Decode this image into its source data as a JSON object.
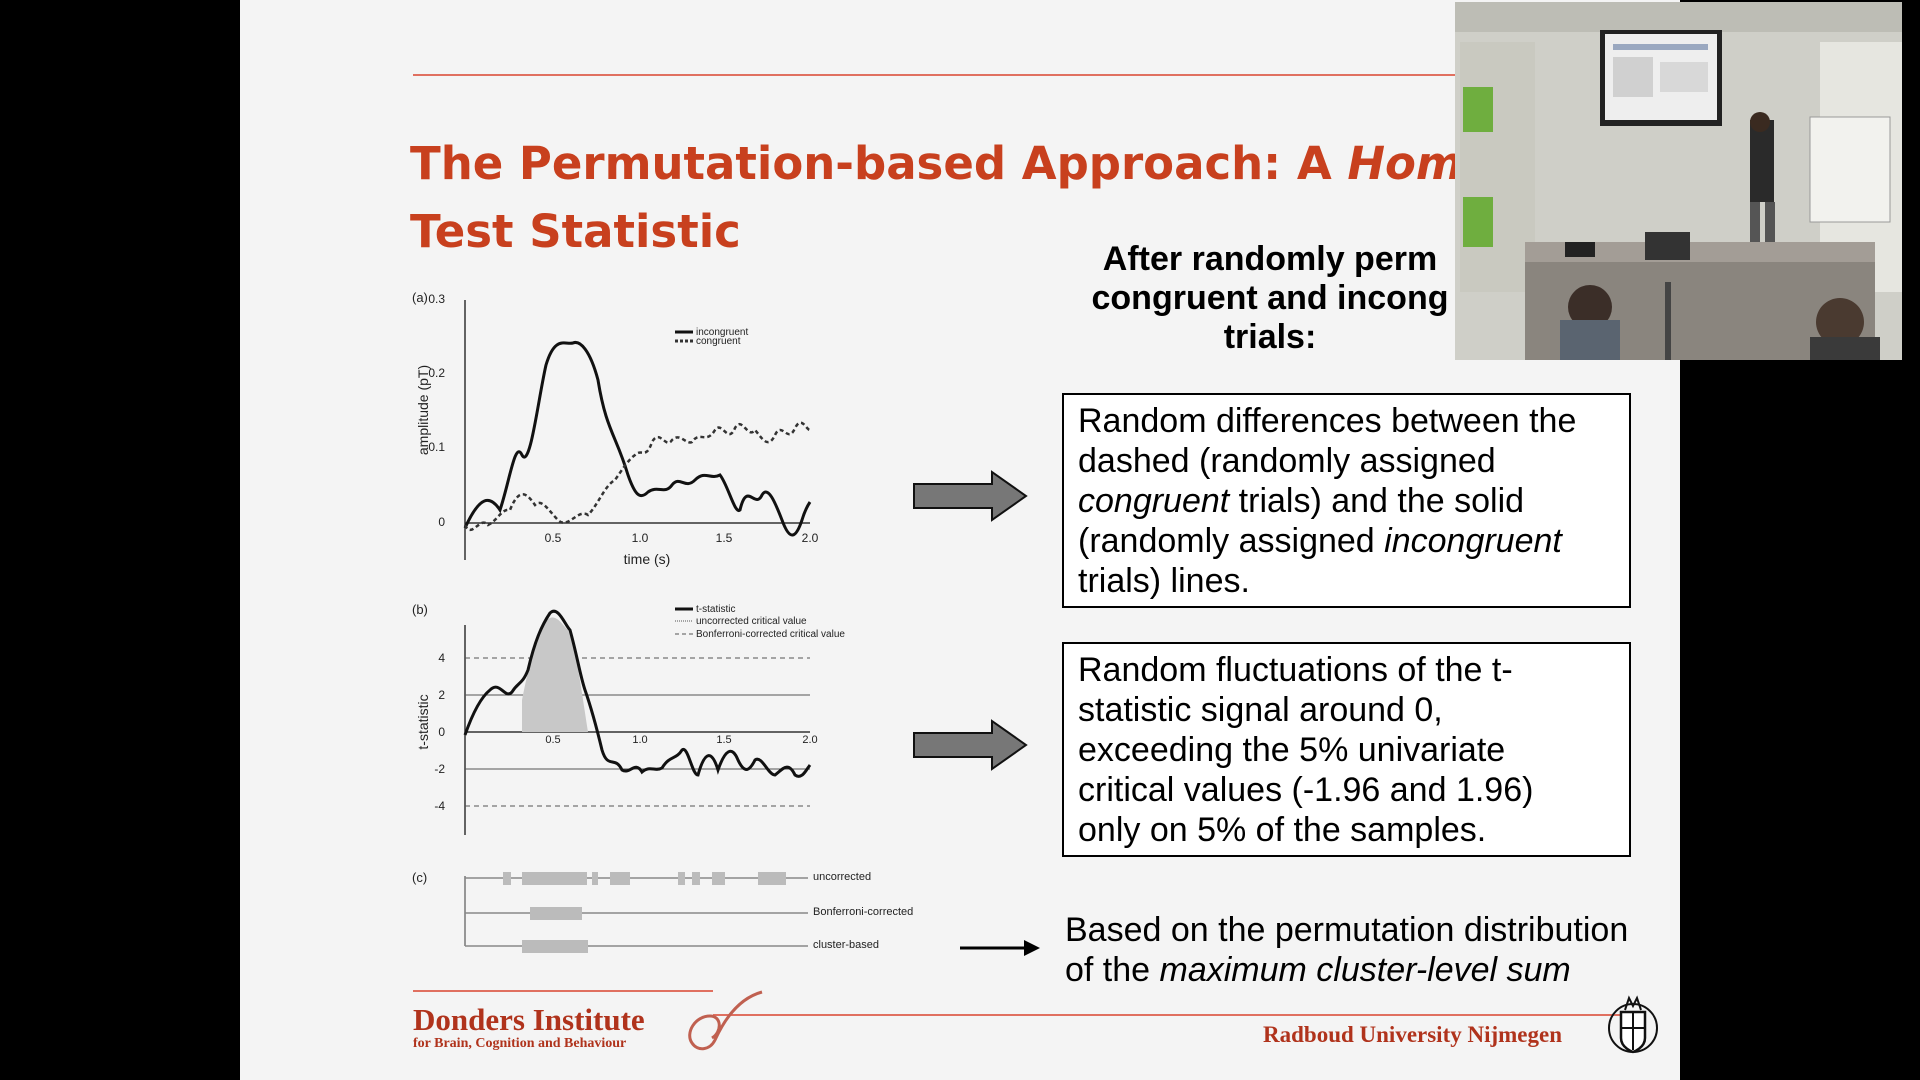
{
  "slide": {
    "title_part1": "The Permutation-based Approach: A ",
    "title_italic": "Home-M",
    "title_line2": "Test Statistic",
    "after_heading": [
      "After randomly perm",
      "congruent and incong",
      "trials:"
    ],
    "box1": {
      "l1": "Random differences between the",
      "l2": "dashed (randomly assigned",
      "l3_italic": "congruent",
      "l3_rest": " trials) and the solid",
      "l4_start": "(randomly assigned ",
      "l4_italic": "incongruent",
      "l5": "trials) lines."
    },
    "box2": {
      "l1": "Random fluctuations of the t-",
      "l2": "statistic signal around 0,",
      "l3": "exceeding the 5% univariate",
      "l4": "critical values (-1.96 and 1.96)",
      "l5": "only on 5% of the samples."
    },
    "based": {
      "l1": "Based on the permutation distribution",
      "l2_start": "of the ",
      "l2_italic": "maximum cluster-level sum"
    },
    "footer": {
      "donders_main": "Donders Institute",
      "donders_sub": "for Brain, Cognition and Behaviour",
      "radboud": "Radboud University Nijmegen"
    }
  },
  "figure": {
    "panel_a": {
      "label": "(a)",
      "ylabel": "amplitude (pT)",
      "xlabel": "time (s)",
      "yticks": [
        "0.3",
        "0.2",
        "0.1",
        "0"
      ],
      "xticks": [
        "0.5",
        "1.0",
        "1.5",
        "2.0"
      ],
      "legend": [
        "incongruent",
        "congruent"
      ]
    },
    "panel_b": {
      "label": "(b)",
      "ylabel": "t-statistic",
      "yticks": [
        "4",
        "2",
        "0",
        "-2",
        "-4"
      ],
      "xticks": [
        "0.5",
        "1.0",
        "1.5",
        "2.0"
      ],
      "legend": [
        "t-statistic",
        "uncorrected critical value",
        "Bonferroni-corrected critical value"
      ]
    },
    "panel_c": {
      "label": "(c)",
      "rows": [
        "uncorrected",
        "Bonferroni-corrected",
        "cluster-based"
      ]
    }
  },
  "colors": {
    "title": "#c8401e",
    "footer": "#b0331c",
    "arrow_fill": "#777777"
  }
}
